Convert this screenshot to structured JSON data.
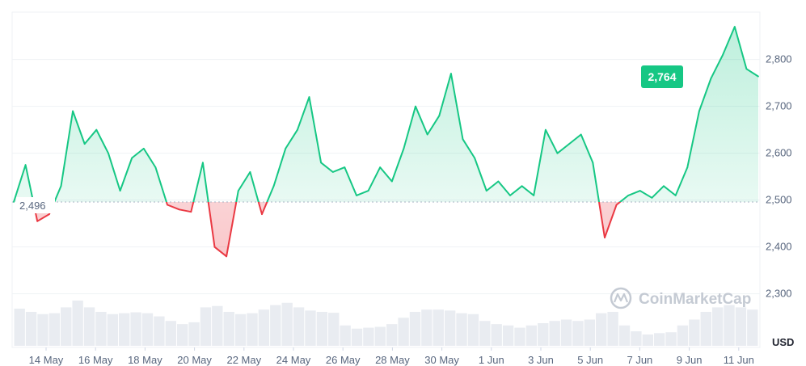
{
  "chart_data": {
    "type": "area",
    "title": "",
    "xlabel": "",
    "ylabel": "",
    "unit": "USD",
    "ylim": [
      2200,
      2900
    ],
    "y_ticks": [
      2300,
      2400,
      2500,
      2600,
      2700,
      2800
    ],
    "y_tick_labels": [
      "2,300",
      "2,400",
      "2,500",
      "2,600",
      "2,700",
      "2,800"
    ],
    "x_tick_labels": [
      "14 May",
      "16 May",
      "18 May",
      "20 May",
      "22 May",
      "24 May",
      "26 May",
      "28 May",
      "30 May",
      "1 Jun",
      "3 Jun",
      "5 Jun",
      "7 Jun",
      "9 Jun",
      "11 Jun"
    ],
    "baseline": {
      "value": 2496,
      "label": "2,496"
    },
    "current": {
      "value": 2764,
      "label": "2,764"
    },
    "colors": {
      "up": "#16c784",
      "down": "#ea3943",
      "axis_text": "#58667e",
      "volume": "#e9ecf1"
    },
    "grid": "horizontal",
    "watermark": "CoinMarketCap",
    "x": [
      "12 May",
      "12.5 May",
      "13 May",
      "13.5 May",
      "14 May",
      "14.5 May",
      "15 May",
      "15.5 May",
      "16 May",
      "16.5 May",
      "17 May",
      "17.5 May",
      "18 May",
      "18.5 May",
      "19 May",
      "19.5 May",
      "20 May",
      "20.5 May",
      "21 May",
      "21.5 May",
      "22 May",
      "22.5 May",
      "23 May",
      "23.5 May",
      "24 May",
      "24.5 May",
      "25 May",
      "25.5 May",
      "26 May",
      "26.5 May",
      "27 May",
      "27.5 May",
      "28 May",
      "28.5 May",
      "29 May",
      "29.5 May",
      "30 May",
      "30.5 May",
      "31 May",
      "31.5 May",
      "1 Jun",
      "1.5 Jun",
      "2 Jun",
      "2.5 Jun",
      "3 Jun",
      "3.5 Jun",
      "4 Jun",
      "4.5 Jun",
      "5 Jun",
      "5.5 Jun",
      "6 Jun",
      "6.5 Jun",
      "7 Jun",
      "7.5 Jun",
      "8 Jun",
      "8.5 Jun",
      "9 Jun",
      "9.5 Jun",
      "10 Jun",
      "10.5 Jun",
      "11 Jun",
      "11.5 Jun",
      "12 Jun",
      "12.5 Jun"
    ],
    "series": [
      {
        "values": [
          2496,
          2575,
          2455,
          2470,
          2530,
          2690,
          2620,
          2650,
          2600,
          2520,
          2590,
          2610,
          2570,
          2490,
          2480,
          2475,
          2580,
          2400,
          2380,
          2520,
          2560,
          2470,
          2530,
          2610,
          2650,
          2720,
          2580,
          2560,
          2570,
          2510,
          2520,
          2570,
          2540,
          2610,
          2700,
          2640,
          2680,
          2770,
          2630,
          2590,
          2520,
          2540,
          2510,
          2530,
          2510,
          2650,
          2600,
          2620,
          2640,
          2580,
          2420,
          2490,
          2510,
          2520,
          2505,
          2530,
          2510,
          2570,
          2690,
          2760,
          2810,
          2870,
          2780,
          2764
        ]
      }
    ],
    "volume": [
      0.82,
      0.75,
      0.7,
      0.72,
      0.85,
      1.0,
      0.85,
      0.75,
      0.7,
      0.72,
      0.74,
      0.72,
      0.65,
      0.55,
      0.48,
      0.52,
      0.85,
      0.88,
      0.75,
      0.7,
      0.72,
      0.8,
      0.9,
      0.95,
      0.85,
      0.78,
      0.75,
      0.73,
      0.45,
      0.38,
      0.4,
      0.42,
      0.48,
      0.62,
      0.75,
      0.8,
      0.8,
      0.78,
      0.72,
      0.7,
      0.55,
      0.48,
      0.45,
      0.4,
      0.45,
      0.5,
      0.55,
      0.58,
      0.55,
      0.58,
      0.72,
      0.75,
      0.45,
      0.32,
      0.25,
      0.28,
      0.3,
      0.45,
      0.58,
      0.75,
      0.85,
      0.9,
      0.85,
      0.8
    ]
  }
}
